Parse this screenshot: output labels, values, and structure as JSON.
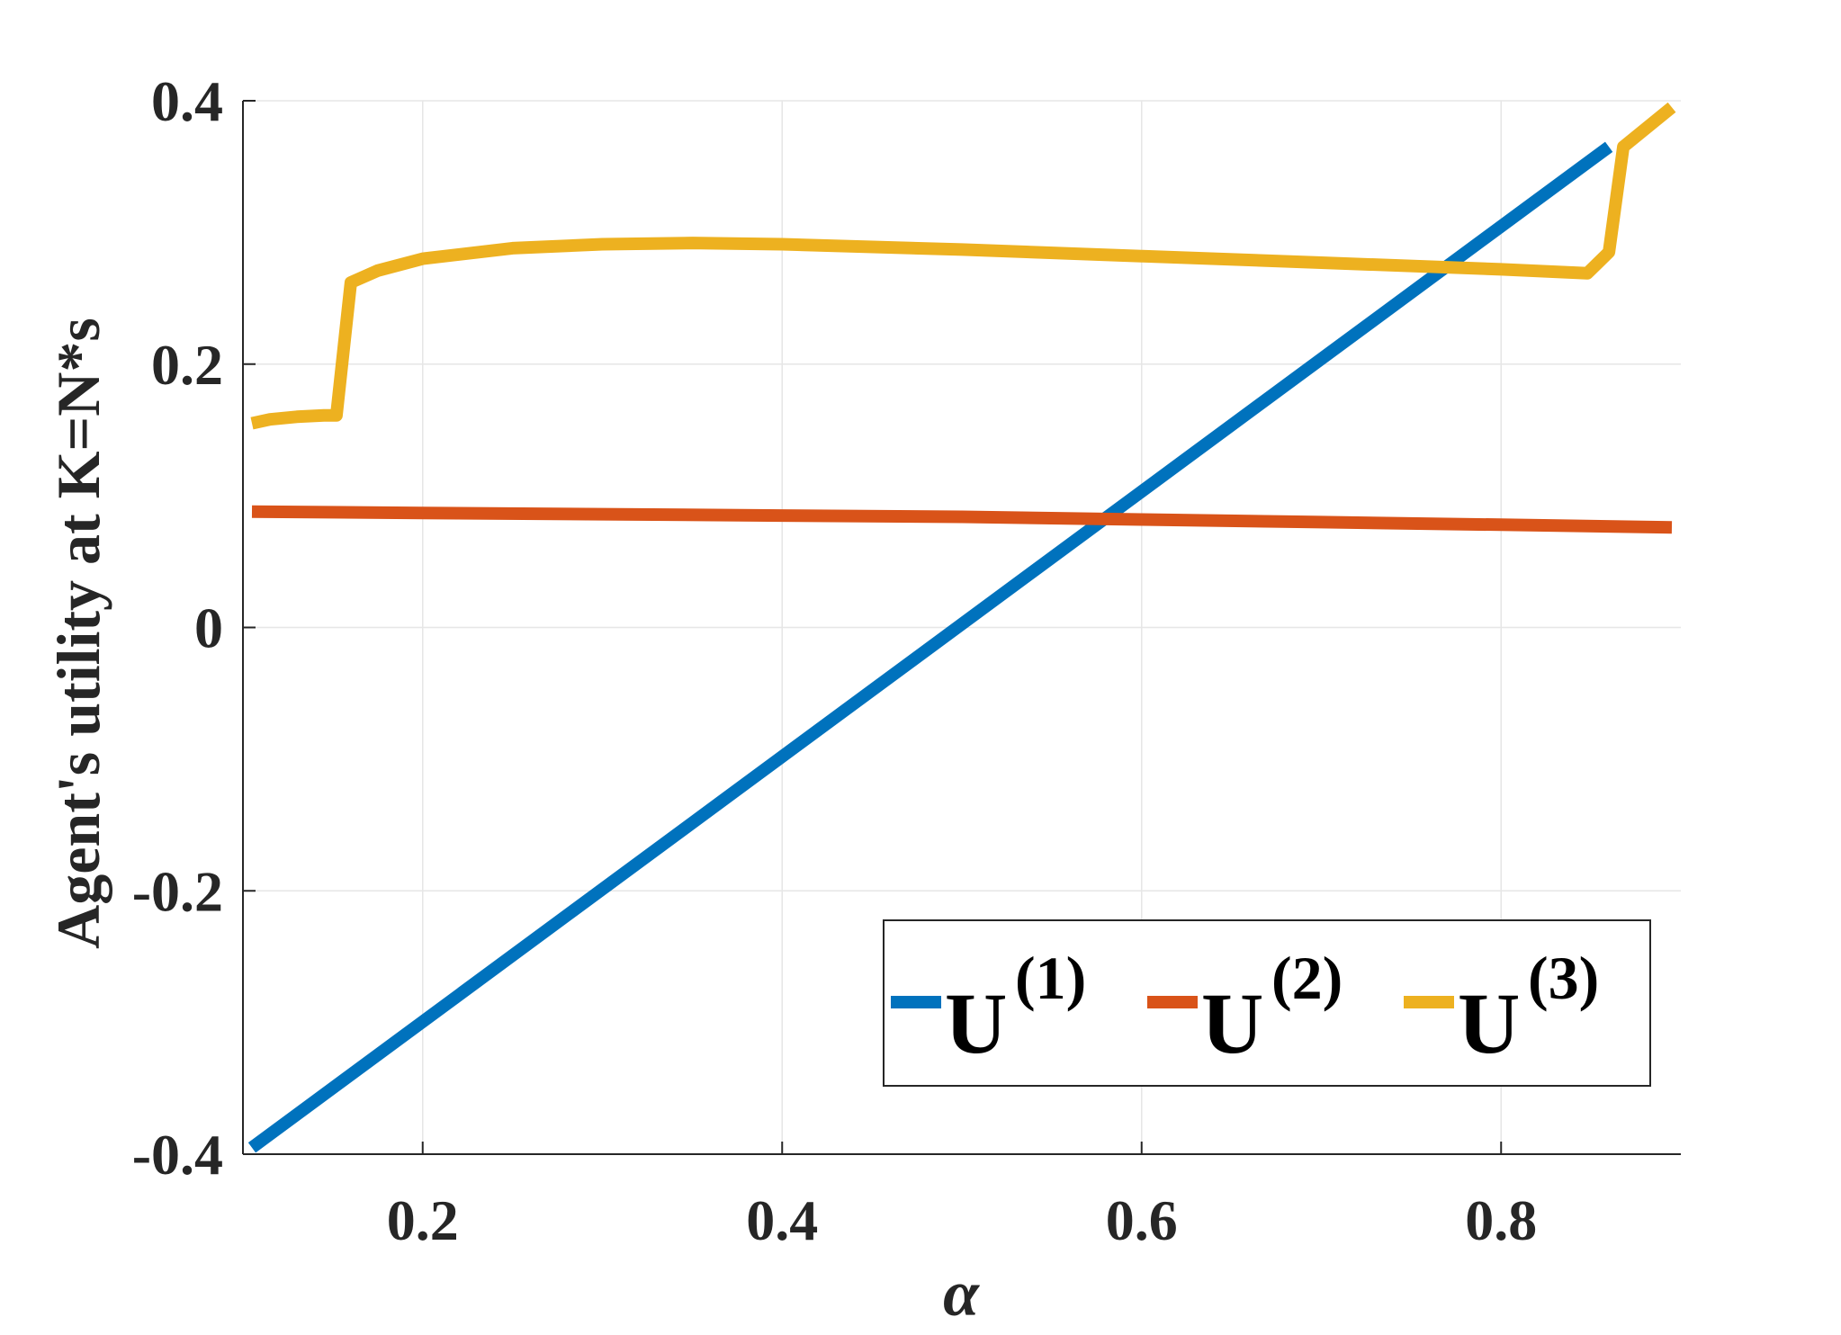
{
  "chart_data": {
    "type": "line",
    "xlabel": "α",
    "ylabel": "Agent's utility at K=N*s",
    "xlim": [
      0.1,
      0.9
    ],
    "ylim": [
      -0.4,
      0.4
    ],
    "xticks": [
      0.2,
      0.4,
      0.6,
      0.8
    ],
    "xtick_labels": [
      "0.2",
      "0.4",
      "0.6",
      "0.8"
    ],
    "yticks": [
      -0.4,
      -0.2,
      0,
      0.2,
      0.4
    ],
    "ytick_labels": [
      "-0.4",
      "-0.2",
      "0",
      "0.2",
      "0.4"
    ],
    "grid": true,
    "legend": {
      "placement": "bottom-right",
      "orientation": "horizontal",
      "entries": [
        {
          "base": "U",
          "sup": "(1)"
        },
        {
          "base": "U",
          "sup": "(2)"
        },
        {
          "base": "U",
          "sup": "(3)"
        }
      ]
    },
    "series": [
      {
        "color": "#0072BD",
        "x": [
          0.105,
          0.86
        ],
        "y": [
          -0.395,
          0.365
        ]
      },
      {
        "color": "#D95319",
        "x": [
          0.105,
          0.2,
          0.3,
          0.4,
          0.5,
          0.6,
          0.7,
          0.8,
          0.895
        ],
        "y": [
          0.088,
          0.087,
          0.086,
          0.085,
          0.084,
          0.082,
          0.08,
          0.078,
          0.076
        ]
      },
      {
        "color": "#EDB120",
        "x": [
          0.105,
          0.115,
          0.13,
          0.145,
          0.152,
          0.16,
          0.175,
          0.2,
          0.25,
          0.3,
          0.35,
          0.4,
          0.5,
          0.6,
          0.7,
          0.8,
          0.848,
          0.86,
          0.868,
          0.895
        ],
        "y": [
          0.155,
          0.158,
          0.16,
          0.161,
          0.161,
          0.262,
          0.271,
          0.28,
          0.288,
          0.291,
          0.292,
          0.291,
          0.287,
          0.282,
          0.277,
          0.272,
          0.269,
          0.285,
          0.365,
          0.395
        ]
      }
    ]
  }
}
